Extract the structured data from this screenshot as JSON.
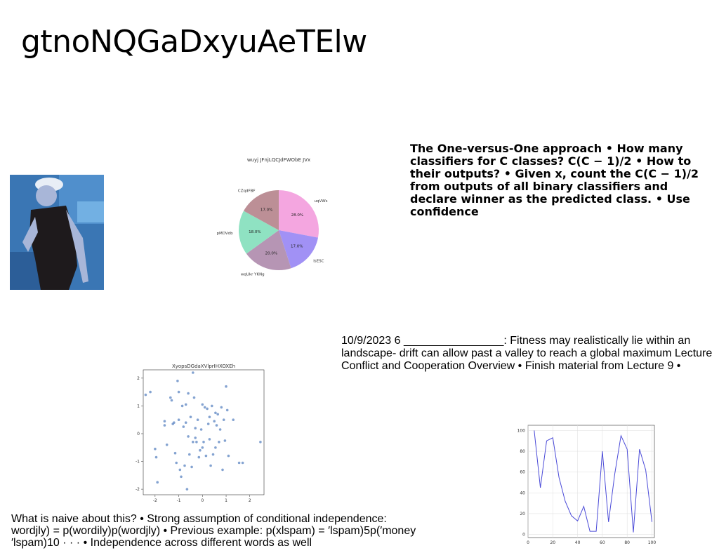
{
  "slide": {
    "title": "gtnoNQGaDxyuAeTElw",
    "text_block_1": "The One-versus-One approach • How many classifiers for C classes? C(C − 1)/2 • How to their outputs? • Given x, count the C(C − 1)/2 from outputs of all binary classifiers and declare winner as the predicted class. • Use confidence",
    "text_block_2": "10/9/2023 6 ________________: Fitness may realistically lie within an landscape- drift can allow past a valley to reach a global maximum Lecture Conflict and Cooperation Overview • Finish material from Lecture 9 •",
    "text_block_3": "What is naive about this? • Strong assumption of conditional independence: wordjly) = p(wordily)p(wordjly) • Previous example: p(xlspam) = ′lspam)5p(′money ′lspam)10 · · · • Independence across different words as well"
  },
  "photo": {
    "colors": {
      "bg": "#3a76b4",
      "shirt": "#1e1a1c",
      "skin": "#a8b6d8",
      "cap": "#e8eef6"
    }
  },
  "chart_data": [
    {
      "type": "pie",
      "title": "wuyj JFnjLQCJdFWObE JVx",
      "labels": [
        "uqVWs",
        "IsESC",
        "wqUkr YKNg",
        "pMDVdb",
        "CZqdFBF"
      ],
      "values": [
        28.0,
        17.0,
        20.0,
        18.0,
        17.0
      ],
      "value_labels": [
        "28.0%",
        "17.0%",
        "20.0%",
        "18.0%",
        "17.0%"
      ],
      "colors": [
        "#f4a6e0",
        "#a191f5",
        "#b695b4",
        "#8fe2c2",
        "#bc8f96"
      ],
      "start_angle": 90,
      "direction": "clockwise"
    },
    {
      "type": "scatter",
      "title": "XyopsDGdaXVlprIHXOXEh",
      "xlim": [
        -2.5,
        2.6
      ],
      "ylim": [
        -2.2,
        2.3
      ],
      "xticks": [
        -2,
        -1,
        0,
        1,
        2
      ],
      "yticks": [
        -2,
        -1,
        0,
        1,
        2
      ],
      "color": "#6f93c9",
      "points": [
        [
          -2.4,
          1.4
        ],
        [
          -2.2,
          1.5
        ],
        [
          -2.0,
          -0.55
        ],
        [
          -1.95,
          -0.85
        ],
        [
          -1.9,
          -1.75
        ],
        [
          -1.6,
          0.45
        ],
        [
          -1.6,
          0.3
        ],
        [
          -1.5,
          -0.4
        ],
        [
          -1.35,
          1.3
        ],
        [
          -1.3,
          1.2
        ],
        [
          -1.25,
          0.35
        ],
        [
          -1.2,
          0.4
        ],
        [
          -1.15,
          -0.7
        ],
        [
          -1.1,
          -1.05
        ],
        [
          -1.05,
          1.9
        ],
        [
          -1.0,
          1.5
        ],
        [
          -1.0,
          0.5
        ],
        [
          -0.95,
          -1.3
        ],
        [
          -0.9,
          -1.55
        ],
        [
          -0.85,
          1.0
        ],
        [
          -0.8,
          0.25
        ],
        [
          -0.75,
          -1.15
        ],
        [
          -0.7,
          1.05
        ],
        [
          -0.7,
          0.4
        ],
        [
          -0.65,
          -2.0
        ],
        [
          -0.6,
          -0.1
        ],
        [
          -0.55,
          -0.75
        ],
        [
          -0.5,
          0.6
        ],
        [
          -0.45,
          -1.2
        ],
        [
          -0.4,
          2.2
        ],
        [
          -0.4,
          -0.3
        ],
        [
          -0.35,
          1.3
        ],
        [
          -0.3,
          0.2
        ],
        [
          -0.25,
          -0.3
        ],
        [
          -0.2,
          0.5
        ],
        [
          -0.15,
          -0.85
        ],
        [
          -0.1,
          -0.6
        ],
        [
          -0.05,
          0.15
        ],
        [
          0.0,
          1.05
        ],
        [
          0.0,
          -0.5
        ],
        [
          0.05,
          -0.3
        ],
        [
          0.1,
          0.95
        ],
        [
          0.15,
          -0.8
        ],
        [
          0.2,
          0.9
        ],
        [
          0.25,
          0.35
        ],
        [
          0.3,
          -0.2
        ],
        [
          0.35,
          -1.15
        ],
        [
          0.4,
          1.0
        ],
        [
          0.45,
          -0.75
        ],
        [
          0.5,
          0.45
        ],
        [
          0.55,
          -0.5
        ],
        [
          0.6,
          0.3
        ],
        [
          0.65,
          0.7
        ],
        [
          0.7,
          -0.3
        ],
        [
          0.75,
          0.15
        ],
        [
          0.8,
          0.95
        ],
        [
          0.85,
          -1.3
        ],
        [
          0.9,
          0.5
        ],
        [
          0.95,
          -0.25
        ],
        [
          1.0,
          1.7
        ],
        [
          1.05,
          0.85
        ],
        [
          1.1,
          -0.8
        ],
        [
          1.3,
          0.5
        ],
        [
          1.55,
          -1.05
        ],
        [
          1.7,
          -1.05
        ],
        [
          2.45,
          -0.3
        ],
        [
          0.55,
          0.75
        ],
        [
          -0.3,
          -0.15
        ],
        [
          0.3,
          0.6
        ],
        [
          -0.6,
          1.45
        ]
      ]
    },
    {
      "type": "line",
      "xlim": [
        0,
        102
      ],
      "ylim": [
        -3,
        105
      ],
      "xticks": [
        0,
        20,
        40,
        60,
        80,
        100
      ],
      "yticks": [
        0,
        20,
        40,
        60,
        80,
        100
      ],
      "color": "#4a4ad8",
      "x": [
        5,
        10,
        15,
        20,
        25,
        30,
        35,
        40,
        45,
        50,
        55,
        60,
        65,
        70,
        75,
        80,
        85,
        90,
        95,
        100
      ],
      "y": [
        100,
        45,
        90,
        93,
        55,
        32,
        18,
        13,
        27,
        3,
        3,
        80,
        12,
        58,
        95,
        82,
        2,
        82,
        62,
        12
      ]
    }
  ]
}
